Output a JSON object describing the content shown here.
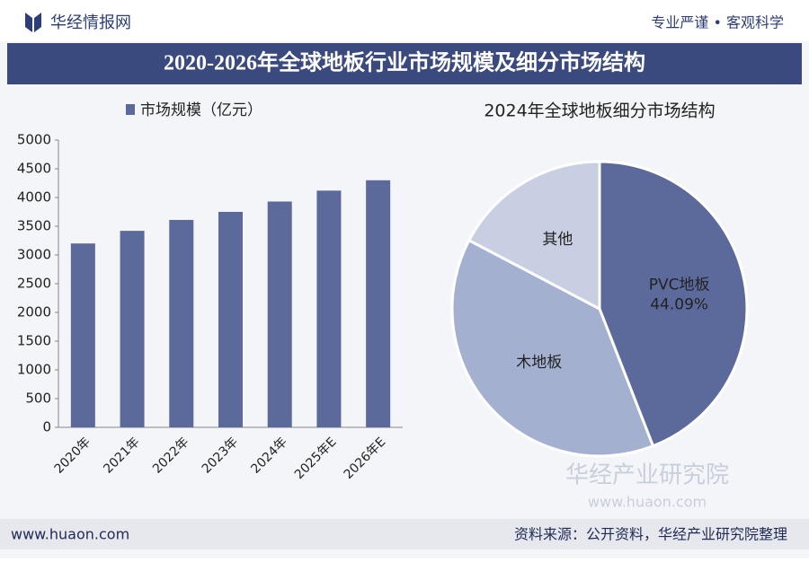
{
  "header": {
    "logo": "华经情报网",
    "slogan": "专业严谨 • 客观科学"
  },
  "banner": {
    "title": "2020-2026年全球地板行业市场规模及细分市场结构"
  },
  "watermark": {
    "name": "华经产业研究院",
    "url": "www.huaon.com"
  },
  "footer": {
    "url": "www.huaon.com",
    "source": "资料来源：公开资料，华经产业研究院整理"
  },
  "chart_data": [
    {
      "type": "bar",
      "categories": [
        "2020年",
        "2021年",
        "2022年",
        "2023年",
        "2024年",
        "2025年E",
        "2026年E"
      ],
      "series": [
        {
          "name": "市场规模（亿元）",
          "color": "#5b6a9b",
          "values": [
            3200,
            3420,
            3610,
            3750,
            3930,
            4120,
            4300
          ]
        }
      ],
      "ylim": [
        0,
        5000
      ],
      "yticks": [
        0,
        500,
        1000,
        1500,
        2000,
        2500,
        3000,
        3500,
        4000,
        4500,
        5000
      ]
    },
    {
      "type": "pie",
      "title": "2024年全球地板细分市场结构",
      "categories": [
        "PVC地板",
        "木地板",
        "其他"
      ],
      "values": [
        44.09,
        38.61,
        17.3
      ],
      "value_labels": [
        "44.09%",
        null,
        null
      ],
      "colors": [
        "#5b6a9b",
        "#a4b0cf",
        "#c8cfe2"
      ]
    }
  ]
}
